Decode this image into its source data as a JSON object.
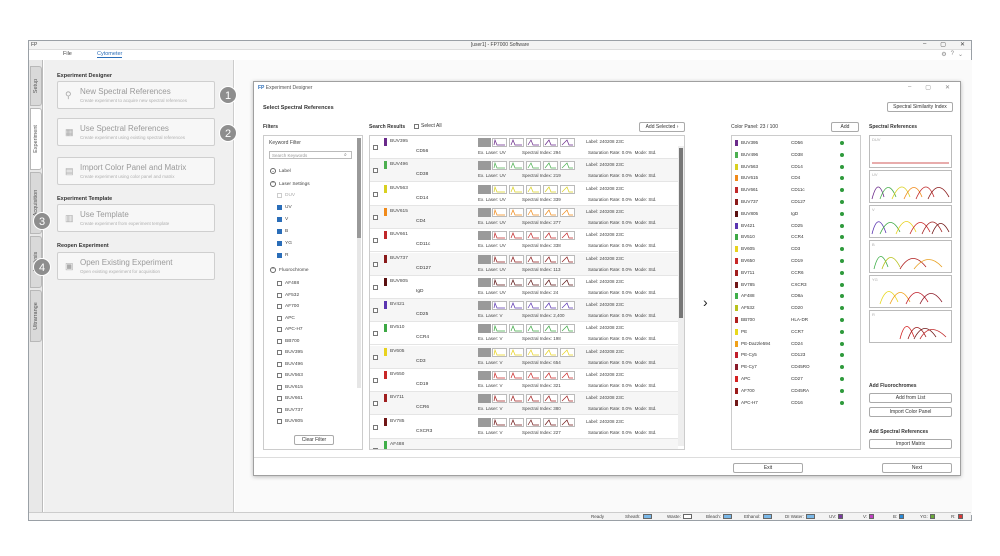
{
  "window": {
    "left_label": "FP",
    "title": "[user1] - FP7000 Software"
  },
  "menu": {
    "file": "File",
    "cytometer": "Cytometer"
  },
  "sidetabs": [
    "Setup",
    "Experiment",
    "Acquisition",
    "Analysis",
    "Ultrarrange"
  ],
  "left_panel": {
    "designer_head": "Experiment Designer",
    "template_head": "Experiment Template",
    "reopen_head": "Reopen Experiment",
    "buttons": [
      {
        "title": "New Spectral References",
        "sub": "Create experiment to acquire new spectral references",
        "step": "1"
      },
      {
        "title": "Use Spectral References",
        "sub": "Create experiment using existing spectral references",
        "step": "2"
      },
      {
        "title": "Import Color Panel and Matrix",
        "sub": "Create experiment using color panel and matrix",
        "step": ""
      },
      {
        "title": "Use Template",
        "sub": "Create experiment from experiment template",
        "step": "3"
      },
      {
        "title": "Open Existing Experiment",
        "sub": "Open existing experiment for acquisition",
        "step": "4"
      }
    ]
  },
  "dialog": {
    "title_brand": "FP",
    "title": "Experiment Designer",
    "heading": "Select Spectral References",
    "ssi_button": "Spectral Similarity Index",
    "filters_head": "Filters",
    "keyword_filter": "Keyword Filter",
    "search_placeholder": "Search Keywords",
    "label": "Label",
    "laser_settings": "Laser Settings",
    "lasers": [
      {
        "name": "DUV",
        "state": "disabled"
      },
      {
        "name": "UV",
        "state": "checked"
      },
      {
        "name": "V",
        "state": "checked"
      },
      {
        "name": "B",
        "state": "checked"
      },
      {
        "name": "YG",
        "state": "checked"
      },
      {
        "name": "R",
        "state": "checked"
      }
    ],
    "fluorochrome": "Fluorochrome",
    "fluoros": [
      "AF488",
      "AF532",
      "AF700",
      "APC",
      "APC-H7",
      "BB700",
      "BUV395",
      "BUV496",
      "BUV563",
      "BUV615",
      "BUV661",
      "BUV737",
      "BUV805"
    ],
    "clear_filter": "Clear Filter",
    "results_head": "Search Results",
    "select_all": "Select All",
    "add_selected": "Add Selected",
    "results": [
      {
        "fluoro": "BUV395",
        "marker": "CD56",
        "color": "#6a2a8a",
        "laser": "UV",
        "index": "294",
        "label": "240208 23C",
        "rate": "0.0%",
        "mode": "Std."
      },
      {
        "fluoro": "BUV496",
        "marker": "CD38",
        "color": "#4caf50",
        "laser": "UV",
        "index": "219",
        "label": "240208 23C",
        "rate": "0.0%",
        "mode": "Std."
      },
      {
        "fluoro": "BUV563",
        "marker": "CD14",
        "color": "#d9d020",
        "laser": "UV",
        "index": "339",
        "label": "240208 23C",
        "rate": "0.0%",
        "mode": "Std."
      },
      {
        "fluoro": "BUV615",
        "marker": "CD4",
        "color": "#f08a1a",
        "laser": "UV",
        "index": "277",
        "label": "240208 23C",
        "rate": "0.0%",
        "mode": "Std."
      },
      {
        "fluoro": "BUV661",
        "marker": "CD11c",
        "color": "#c0282a",
        "laser": "UV",
        "index": "338",
        "label": "240208 23C",
        "rate": "0.0%",
        "mode": "Std."
      },
      {
        "fluoro": "BUV737",
        "marker": "CD127",
        "color": "#8a1a1a",
        "laser": "UV",
        "index": "113",
        "label": "240208 23C",
        "rate": "0.0%",
        "mode": "Std."
      },
      {
        "fluoro": "BUV805",
        "marker": "IgD",
        "color": "#5a1010",
        "laser": "UV",
        "index": "24",
        "label": "240208 23C",
        "rate": "0.0%",
        "mode": "Std."
      },
      {
        "fluoro": "BV421",
        "marker": "CD25",
        "color": "#5a35b0",
        "laser": "V",
        "index": "2,400",
        "label": "240208 23C",
        "rate": "0.0%",
        "mode": "Std."
      },
      {
        "fluoro": "BV510",
        "marker": "CCR4",
        "color": "#3da844",
        "laser": "V",
        "index": "198",
        "label": "240208 23C",
        "rate": "0.0%",
        "mode": "Std."
      },
      {
        "fluoro": "BV605",
        "marker": "CD3",
        "color": "#e8d21e",
        "laser": "V",
        "index": "654",
        "label": "240208 23C",
        "rate": "0.0%",
        "mode": "Std."
      },
      {
        "fluoro": "BV650",
        "marker": "CD19",
        "color": "#c82828",
        "laser": "V",
        "index": "321",
        "label": "240208 23C",
        "rate": "0.0%",
        "mode": "Std."
      },
      {
        "fluoro": "BV711",
        "marker": "CCR6",
        "color": "#a01e1e",
        "laser": "V",
        "index": "380",
        "label": "240208 23C",
        "rate": "0.0%",
        "mode": "Std."
      },
      {
        "fluoro": "BV785",
        "marker": "CXCR3",
        "color": "#701616",
        "laser": "V",
        "index": "227",
        "label": "240208 23C",
        "rate": "0.0%",
        "mode": "Std."
      },
      {
        "fluoro": "AF488",
        "marker": "",
        "color": "#3fae49",
        "laser": "",
        "index": "",
        "label": "",
        "rate": "",
        "mode": ""
      }
    ],
    "ex_laser_label": "Ex. Laser:",
    "index_label": "Spectral Index:",
    "label_label": "Label:",
    "rate_label": "Saturation Rate:",
    "mode_label": "Mode:",
    "color_panel_head": "Color Panel: 23 / 100",
    "add": "Add",
    "panel": [
      {
        "fluoro": "BUV395",
        "marker": "CD56",
        "color": "#6a2a8a"
      },
      {
        "fluoro": "BUV496",
        "marker": "CD38",
        "color": "#4caf50"
      },
      {
        "fluoro": "BUV563",
        "marker": "CD14",
        "color": "#d9d020"
      },
      {
        "fluoro": "BUV615",
        "marker": "CD4",
        "color": "#f08a1a"
      },
      {
        "fluoro": "BUV661",
        "marker": "CD11c",
        "color": "#c0282a"
      },
      {
        "fluoro": "BUV737",
        "marker": "CD127",
        "color": "#8a1a1a"
      },
      {
        "fluoro": "BUV805",
        "marker": "IgD",
        "color": "#5a1010"
      },
      {
        "fluoro": "BV421",
        "marker": "CD25",
        "color": "#5a35b0"
      },
      {
        "fluoro": "BV510",
        "marker": "CCR4",
        "color": "#3da844"
      },
      {
        "fluoro": "BV605",
        "marker": "CD3",
        "color": "#e8d21e"
      },
      {
        "fluoro": "BV650",
        "marker": "CD19",
        "color": "#c82828"
      },
      {
        "fluoro": "BV711",
        "marker": "CCR6",
        "color": "#a01e1e"
      },
      {
        "fluoro": "BV785",
        "marker": "CXCR3",
        "color": "#701616"
      },
      {
        "fluoro": "AF488",
        "marker": "CD8a",
        "color": "#3fae49"
      },
      {
        "fluoro": "AF532",
        "marker": "CD20",
        "color": "#b8c21e"
      },
      {
        "fluoro": "BB700",
        "marker": "HLA-DR",
        "color": "#b01e1e"
      },
      {
        "fluoro": "PE",
        "marker": "CCR7",
        "color": "#e8d81c"
      },
      {
        "fluoro": "PE-Dazzle594",
        "marker": "CD24",
        "color": "#f0a018"
      },
      {
        "fluoro": "PE-Cy5",
        "marker": "CD123",
        "color": "#c01e2a"
      },
      {
        "fluoro": "PE-Cy7",
        "marker": "CD45RO",
        "color": "#8a1a28"
      },
      {
        "fluoro": "APC",
        "marker": "CD27",
        "color": "#d42020"
      },
      {
        "fluoro": "AF700",
        "marker": "CD45RA",
        "color": "#9a1a1a"
      },
      {
        "fluoro": "APC-H7",
        "marker": "CD16",
        "color": "#701818"
      }
    ],
    "spectral_refs_head": "Spectral References",
    "spec_boxes": [
      "DUV",
      "UV",
      "V",
      "B",
      "YG",
      "R"
    ],
    "add_fluoro_head": "Add Fluorochromes",
    "add_from_list": "Add from List",
    "import_color_panel": "Import Color Panel",
    "add_spectral_head": "Add Spectral References",
    "import_matrix": "Import Matrix",
    "exit": "Exit",
    "next": "Next"
  },
  "status": {
    "ready": "Ready",
    "items": [
      {
        "label": "Sheath:",
        "color": "#7ab8e8"
      },
      {
        "label": "Waste:",
        "color": "#ffffff"
      },
      {
        "label": "Bleach:",
        "color": "#7ab8e8"
      },
      {
        "label": "Ethanol:",
        "color": "#7ab8e8"
      },
      {
        "label": "DI Water:",
        "color": "#7ab8e8"
      },
      {
        "label": "UV:",
        "color": "#7a3aa0"
      },
      {
        "label": "V:",
        "color": "#c040c0"
      },
      {
        "label": "B:",
        "color": "#2a8ad8"
      },
      {
        "label": "YG:",
        "color": "#6aa83a"
      },
      {
        "label": "R:",
        "color": "#d83838"
      }
    ]
  }
}
